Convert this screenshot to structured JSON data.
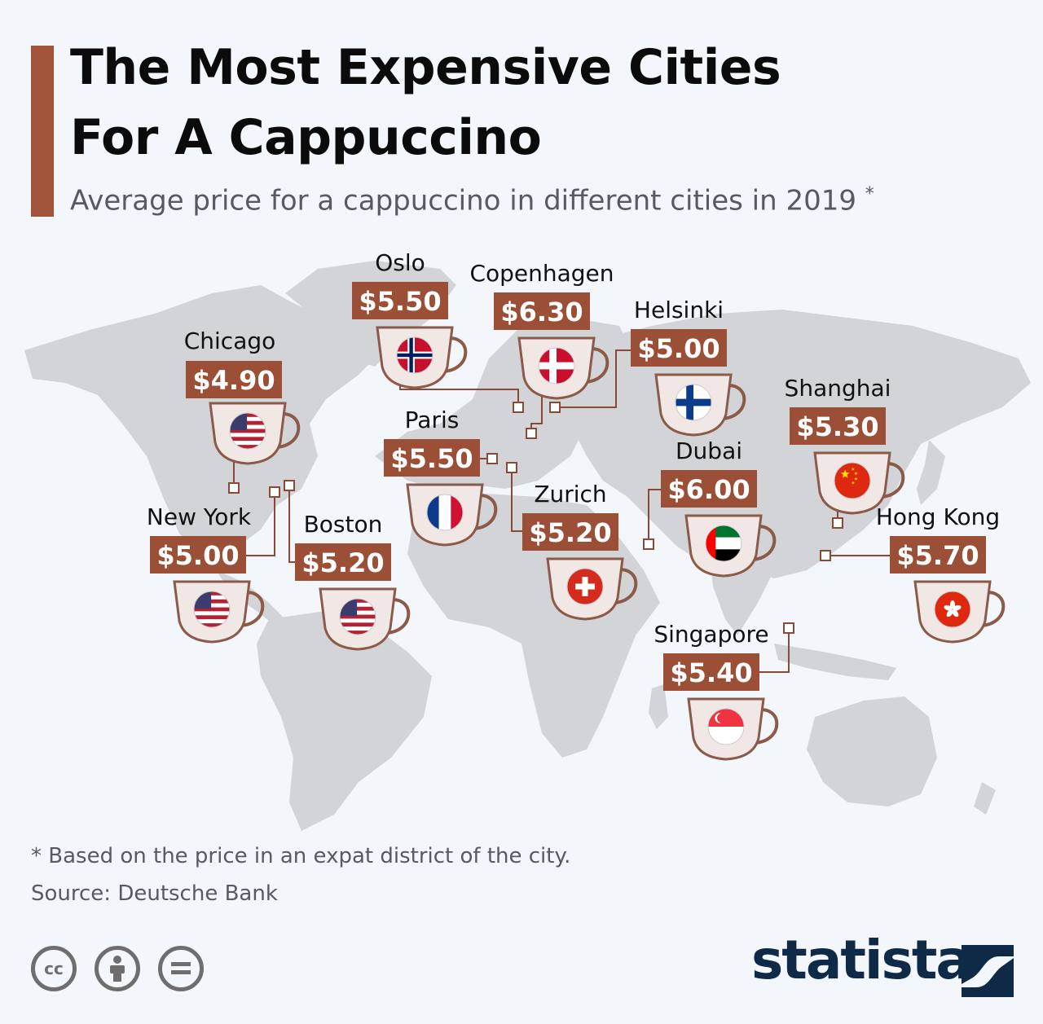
{
  "title_line1": "The Most Expensive Cities",
  "title_line2": "For A Cappuccino",
  "subtitle": "Average price for a cappuccino in different cities in 2019",
  "subtitle_mark": "*",
  "footnote": "* Based on the price in an expat district of the city.",
  "source": "Source: Deutsche Bank",
  "brand": "statista",
  "license_icons": [
    "cc-icon",
    "attribution-icon",
    "no-derivatives-icon"
  ],
  "colors": {
    "accent": "#a1543a",
    "price_box": "#9a4f36",
    "cup_fill": "#f1e8e6",
    "cup_stroke": "#8b5a48",
    "connector": "#8b4a36",
    "map_land": "#d2d4d8",
    "brand": "#0e2a47"
  },
  "chart_data": {
    "type": "map",
    "title": "The Most Expensive Cities For A Cappuccino",
    "subtitle": "Average price for a cappuccino in different cities in 2019 *",
    "unit": "USD",
    "points": [
      {
        "city": "Oslo",
        "label": "$5.50",
        "value": 5.5,
        "flag": "norway"
      },
      {
        "city": "Copenhagen",
        "label": "$6.30",
        "value": 6.3,
        "flag": "denmark"
      },
      {
        "city": "Helsinki",
        "label": "$5.00",
        "value": 5.0,
        "flag": "finland"
      },
      {
        "city": "Chicago",
        "label": "$4.90",
        "value": 4.9,
        "flag": "usa"
      },
      {
        "city": "Paris",
        "label": "$5.50",
        "value": 5.5,
        "flag": "france"
      },
      {
        "city": "Shanghai",
        "label": "$5.30",
        "value": 5.3,
        "flag": "china"
      },
      {
        "city": "Dubai",
        "label": "$6.00",
        "value": 6.0,
        "flag": "uae"
      },
      {
        "city": "Zurich",
        "label": "$5.20",
        "value": 5.2,
        "flag": "switzerland"
      },
      {
        "city": "New York",
        "label": "$5.00",
        "value": 5.0,
        "flag": "usa"
      },
      {
        "city": "Boston",
        "label": "$5.20",
        "value": 5.2,
        "flag": "usa"
      },
      {
        "city": "Hong Kong",
        "label": "$5.70",
        "value": 5.7,
        "flag": "hong-kong"
      },
      {
        "city": "Singapore",
        "label": "$5.40",
        "value": 5.4,
        "flag": "singapore"
      }
    ]
  }
}
